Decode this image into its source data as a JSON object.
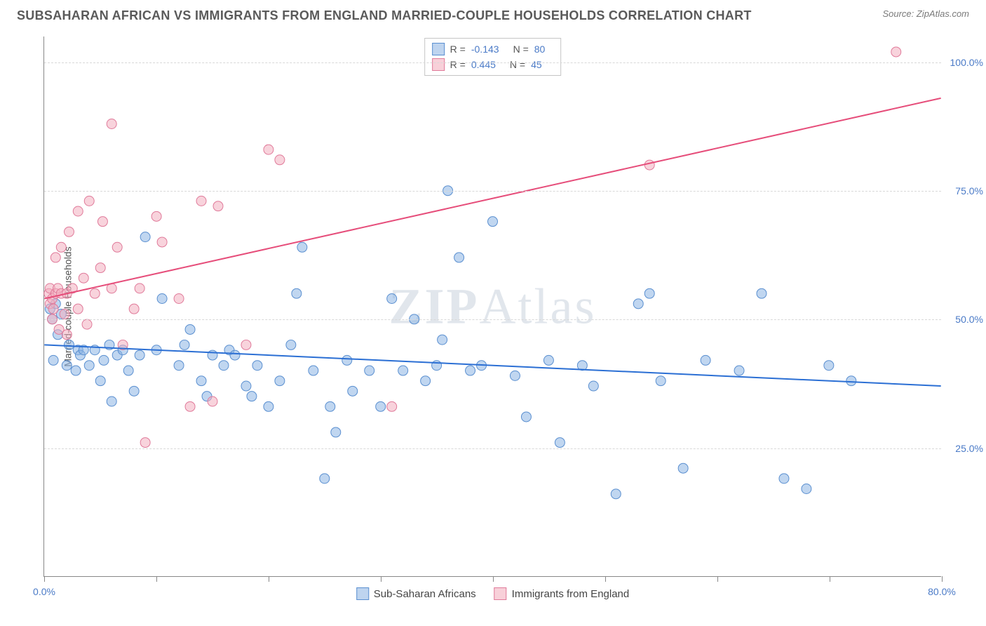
{
  "title": "SUBSAHARAN AFRICAN VS IMMIGRANTS FROM ENGLAND MARRIED-COUPLE HOUSEHOLDS CORRELATION CHART",
  "source": "Source: ZipAtlas.com",
  "watermark_a": "ZIP",
  "watermark_b": "Atlas",
  "y_axis_label": "Married-couple Households",
  "chart": {
    "type": "scatter",
    "xlim": [
      0,
      80
    ],
    "ylim": [
      0,
      105
    ],
    "x_ticks": [
      0,
      10,
      20,
      30,
      40,
      50,
      60,
      70,
      80
    ],
    "x_tick_labels": {
      "0": "0.0%",
      "80": "80.0%"
    },
    "y_gridlines": [
      25,
      50,
      75,
      100
    ],
    "y_tick_labels": {
      "25": "25.0%",
      "50": "50.0%",
      "75": "75.0%",
      "100": "100.0%"
    },
    "background_color": "#ffffff",
    "grid_color": "#d8d8d8",
    "axis_color": "#888888",
    "tick_label_color": "#4a7ac7",
    "marker_radius": 7,
    "marker_opacity": 0.55,
    "line_width": 2,
    "series": [
      {
        "name": "Sub-Saharan Africans",
        "fill_color": "#8db5e3",
        "stroke_color": "#5a8fd0",
        "line_color": "#2b6fd4",
        "R": "-0.143",
        "N": "80",
        "trend": {
          "x1": 0,
          "y1": 45,
          "x2": 80,
          "y2": 37
        },
        "points": [
          [
            0.5,
            52
          ],
          [
            0.7,
            50
          ],
          [
            0.8,
            42
          ],
          [
            1,
            53
          ],
          [
            1.2,
            47
          ],
          [
            1.5,
            51
          ],
          [
            2,
            41
          ],
          [
            2.2,
            45
          ],
          [
            2.8,
            40
          ],
          [
            3,
            44
          ],
          [
            3.2,
            43
          ],
          [
            3.5,
            44
          ],
          [
            4,
            41
          ],
          [
            4.5,
            44
          ],
          [
            5,
            38
          ],
          [
            5.3,
            42
          ],
          [
            5.8,
            45
          ],
          [
            6,
            34
          ],
          [
            6.5,
            43
          ],
          [
            7,
            44
          ],
          [
            7.5,
            40
          ],
          [
            8,
            36
          ],
          [
            8.5,
            43
          ],
          [
            9,
            66
          ],
          [
            10,
            44
          ],
          [
            10.5,
            54
          ],
          [
            12,
            41
          ],
          [
            12.5,
            45
          ],
          [
            13,
            48
          ],
          [
            14,
            38
          ],
          [
            14.5,
            35
          ],
          [
            15,
            43
          ],
          [
            16,
            41
          ],
          [
            16.5,
            44
          ],
          [
            17,
            43
          ],
          [
            18,
            37
          ],
          [
            18.5,
            35
          ],
          [
            19,
            41
          ],
          [
            20,
            33
          ],
          [
            21,
            38
          ],
          [
            22,
            45
          ],
          [
            22.5,
            55
          ],
          [
            23,
            64
          ],
          [
            24,
            40
          ],
          [
            25,
            19
          ],
          [
            25.5,
            33
          ],
          [
            26,
            28
          ],
          [
            27,
            42
          ],
          [
            27.5,
            36
          ],
          [
            29,
            40
          ],
          [
            30,
            33
          ],
          [
            31,
            54
          ],
          [
            32,
            40
          ],
          [
            33,
            50
          ],
          [
            34,
            38
          ],
          [
            35,
            41
          ],
          [
            35.5,
            46
          ],
          [
            36,
            75
          ],
          [
            37,
            62
          ],
          [
            38,
            40
          ],
          [
            39,
            41
          ],
          [
            40,
            69
          ],
          [
            42,
            39
          ],
          [
            43,
            31
          ],
          [
            45,
            42
          ],
          [
            46,
            26
          ],
          [
            48,
            41
          ],
          [
            49,
            37
          ],
          [
            51,
            16
          ],
          [
            53,
            53
          ],
          [
            54,
            55
          ],
          [
            55,
            38
          ],
          [
            57,
            21
          ],
          [
            59,
            42
          ],
          [
            62,
            40
          ],
          [
            64,
            55
          ],
          [
            66,
            19
          ],
          [
            68,
            17
          ],
          [
            70,
            41
          ],
          [
            72,
            38
          ]
        ]
      },
      {
        "name": "Immigrants from England",
        "fill_color": "#f2aebf",
        "stroke_color": "#e07a9a",
        "line_color": "#e64d7a",
        "R": "0.445",
        "N": "45",
        "trend": {
          "x1": 0,
          "y1": 54,
          "x2": 80,
          "y2": 93
        },
        "points": [
          [
            0.4,
            55
          ],
          [
            0.5,
            53
          ],
          [
            0.5,
            56
          ],
          [
            0.7,
            50
          ],
          [
            0.7,
            54
          ],
          [
            0.8,
            52
          ],
          [
            1,
            55
          ],
          [
            1,
            62
          ],
          [
            1.2,
            56
          ],
          [
            1.3,
            48
          ],
          [
            1.5,
            55
          ],
          [
            1.5,
            64
          ],
          [
            1.8,
            51
          ],
          [
            2,
            55
          ],
          [
            2,
            47
          ],
          [
            2.2,
            67
          ],
          [
            2.5,
            56
          ],
          [
            3,
            52
          ],
          [
            3,
            71
          ],
          [
            3.5,
            58
          ],
          [
            3.8,
            49
          ],
          [
            4,
            73
          ],
          [
            4.5,
            55
          ],
          [
            5,
            60
          ],
          [
            5.2,
            69
          ],
          [
            6,
            56
          ],
          [
            6,
            88
          ],
          [
            6.5,
            64
          ],
          [
            7,
            45
          ],
          [
            8,
            52
          ],
          [
            8.5,
            56
          ],
          [
            10,
            70
          ],
          [
            10.5,
            65
          ],
          [
            12,
            54
          ],
          [
            13,
            33
          ],
          [
            14,
            73
          ],
          [
            15,
            34
          ],
          [
            15.5,
            72
          ],
          [
            18,
            45
          ],
          [
            20,
            83
          ],
          [
            21,
            81
          ],
          [
            31,
            33
          ],
          [
            54,
            80
          ],
          [
            76,
            102
          ],
          [
            9,
            26
          ]
        ]
      }
    ]
  },
  "legend_bottom": [
    {
      "swatch": "blue",
      "label": "Sub-Saharan Africans"
    },
    {
      "swatch": "pink",
      "label": "Immigrants from England"
    }
  ]
}
